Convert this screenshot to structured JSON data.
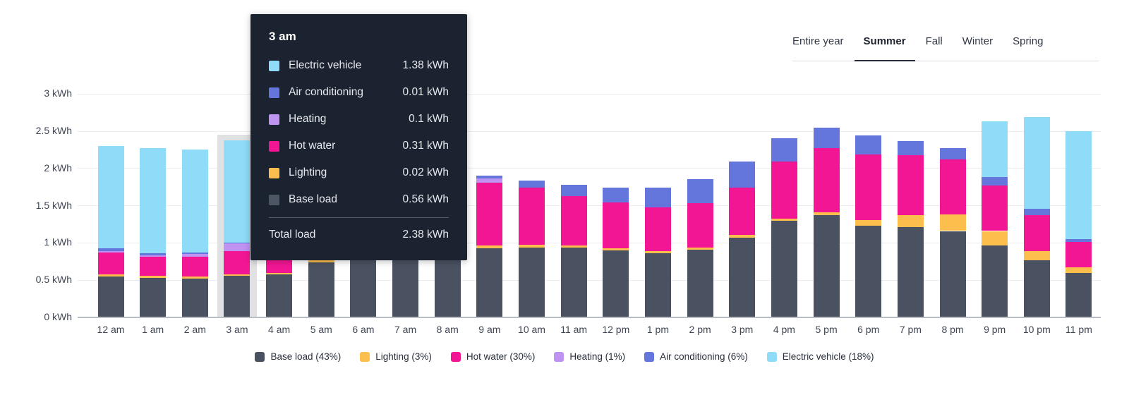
{
  "header": {
    "tabs": [
      {
        "label": "Entire year",
        "active": false
      },
      {
        "label": "Summer",
        "active": true
      },
      {
        "label": "Fall",
        "active": false
      },
      {
        "label": "Winter",
        "active": false
      },
      {
        "label": "Spring",
        "active": false
      }
    ]
  },
  "tooltip": {
    "title": "3 am",
    "rows": [
      {
        "label": "Electric vehicle",
        "value": "1.38 kWh",
        "color": "#8edcf8"
      },
      {
        "label": "Air conditioning",
        "value": "0.01 kWh",
        "color": "#6476dc"
      },
      {
        "label": "Heating",
        "value": "0.1 kWh",
        "color": "#bf93f2"
      },
      {
        "label": "Hot water",
        "value": "0.31 kWh",
        "color": "#f31694"
      },
      {
        "label": "Lighting",
        "value": "0.02 kWh",
        "color": "#fcbf4e"
      },
      {
        "label": "Base load",
        "value": "0.56 kWh",
        "color": "#4d5665"
      }
    ],
    "total_label": "Total load",
    "total_value": "2.38 kWh"
  },
  "legend": [
    {
      "label": "Base load (43%)",
      "color": "#4a5262"
    },
    {
      "label": "Lighting (3%)",
      "color": "#fcbf4e"
    },
    {
      "label": "Hot water (30%)",
      "color": "#f31694"
    },
    {
      "label": "Heating (1%)",
      "color": "#bf93f2"
    },
    {
      "label": "Air conditioning (6%)",
      "color": "#6476dc"
    },
    {
      "label": "Electric vehicle (18%)",
      "color": "#8edcf8"
    }
  ],
  "chart_data": {
    "type": "bar",
    "stacked": true,
    "unit": "kWh",
    "ylim": [
      0,
      3
    ],
    "grid": true,
    "y_ticks": [
      {
        "value": 0,
        "label": "0 kWh"
      },
      {
        "value": 0.5,
        "label": "0.5 kWh"
      },
      {
        "value": 1,
        "label": "1 kWh"
      },
      {
        "value": 1.5,
        "label": "1.5 kWh"
      },
      {
        "value": 2,
        "label": "2 kWh"
      },
      {
        "value": 2.5,
        "label": "2.5 kWh"
      },
      {
        "value": 3,
        "label": "3 kWh"
      }
    ],
    "categories": [
      "12 am",
      "1 am",
      "2 am",
      "3 am",
      "4 am",
      "5 am",
      "6 am",
      "7 am",
      "8 am",
      "9 am",
      "10 am",
      "11 am",
      "12 pm",
      "1 pm",
      "2 pm",
      "3 pm",
      "4 pm",
      "5 pm",
      "6 pm",
      "7 pm",
      "8 pm",
      "9 pm",
      "10 pm",
      "11 pm"
    ],
    "highlighted_category": "3 am",
    "highlighted_index": 3,
    "series": [
      {
        "name": "Base load",
        "color": "#4a5262",
        "values": [
          0.55,
          0.53,
          0.52,
          0.56,
          0.58,
          0.74,
          0.95,
          1.0,
          0.97,
          0.93,
          0.94,
          0.94,
          0.9,
          0.86,
          0.91,
          1.07,
          1.3,
          1.37,
          1.23,
          1.21,
          1.16,
          0.97,
          0.77,
          0.6
        ]
      },
      {
        "name": "Lighting",
        "color": "#fcbf4e",
        "values": [
          0.03,
          0.03,
          0.03,
          0.02,
          0.02,
          0.03,
          0.04,
          0.04,
          0.03,
          0.04,
          0.04,
          0.03,
          0.03,
          0.03,
          0.03,
          0.04,
          0.03,
          0.04,
          0.08,
          0.16,
          0.22,
          0.19,
          0.12,
          0.07
        ]
      },
      {
        "name": "Hot water",
        "color": "#f31694",
        "values": [
          0.29,
          0.25,
          0.26,
          0.31,
          0.3,
          0.12,
          0.4,
          0.45,
          0.6,
          0.84,
          0.76,
          0.66,
          0.61,
          0.59,
          0.59,
          0.63,
          0.76,
          0.86,
          0.88,
          0.81,
          0.74,
          0.61,
          0.48,
          0.34
        ]
      },
      {
        "name": "Heating",
        "color": "#bf93f2",
        "values": [
          0.02,
          0.02,
          0.04,
          0.1,
          0.06,
          0.02,
          0.02,
          0.02,
          0.03,
          0.06,
          0,
          0,
          0,
          0,
          0,
          0,
          0,
          0,
          0,
          0,
          0,
          0,
          0,
          0
        ]
      },
      {
        "name": "Air conditioning",
        "color": "#6476dc",
        "values": [
          0.04,
          0.03,
          0.02,
          0.01,
          0.02,
          0.04,
          0.04,
          0.05,
          0.06,
          0.03,
          0.1,
          0.15,
          0.2,
          0.26,
          0.33,
          0.35,
          0.32,
          0.28,
          0.25,
          0.19,
          0.15,
          0.11,
          0.09,
          0.04
        ]
      },
      {
        "name": "Electric vehicle",
        "color": "#8edcf8",
        "values": [
          1.37,
          1.41,
          1.38,
          1.38,
          0.7,
          0.4,
          0.15,
          0.05,
          0.02,
          0,
          0,
          0,
          0,
          0,
          0,
          0,
          0,
          0,
          0,
          0,
          0,
          0.75,
          1.23,
          1.45
        ]
      }
    ]
  }
}
